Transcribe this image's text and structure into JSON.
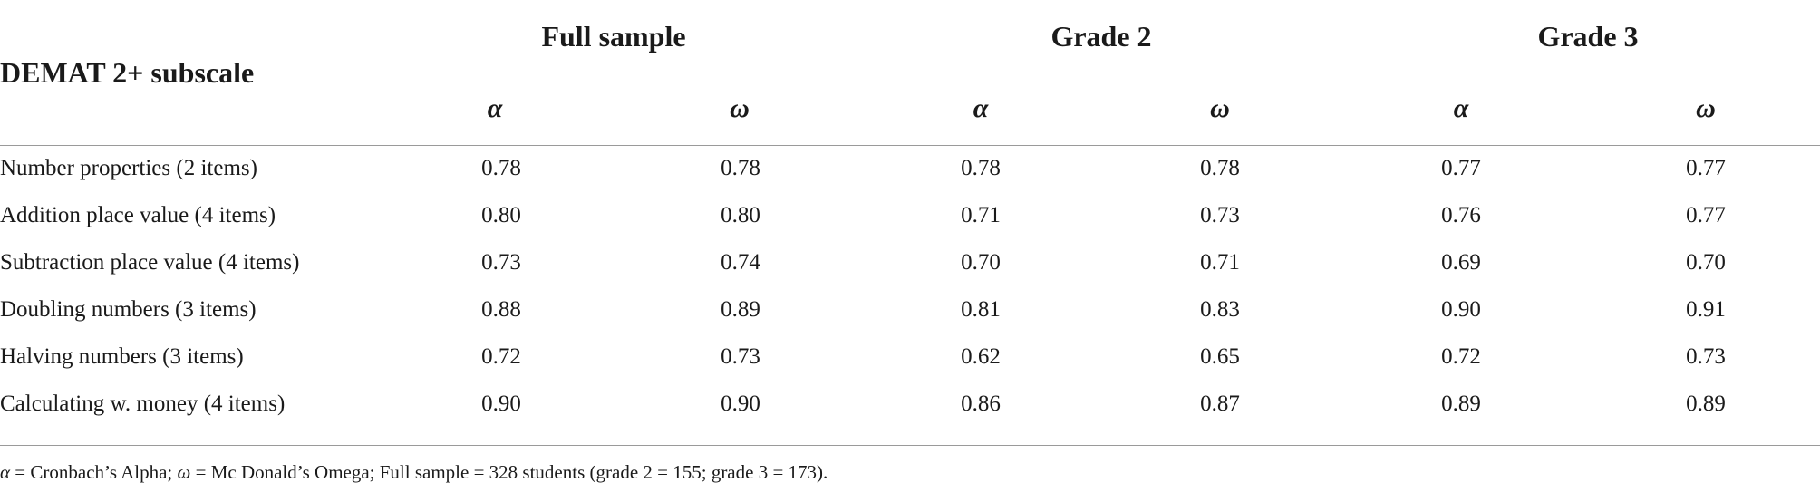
{
  "table": {
    "subscale_header": "DEMAT 2+ subscale",
    "groups": [
      {
        "label": "Full sample",
        "stat1": "α",
        "stat2": "ω"
      },
      {
        "label": "Grade 2",
        "stat1": "α",
        "stat2": "ω"
      },
      {
        "label": "Grade 3",
        "stat1": "α",
        "stat2": "ω"
      }
    ],
    "rows": [
      {
        "label": "Number properties (2 items)",
        "values": [
          "0.78",
          "0.78",
          "0.78",
          "0.78",
          "0.77",
          "0.77"
        ]
      },
      {
        "label": "Addition place value (4 items)",
        "values": [
          "0.80",
          "0.80",
          "0.71",
          "0.73",
          "0.76",
          "0.77"
        ]
      },
      {
        "label": "Subtraction place value (4 items)",
        "values": [
          "0.73",
          "0.74",
          "0.70",
          "0.71",
          "0.69",
          "0.70"
        ]
      },
      {
        "label": "Doubling numbers (3 items)",
        "values": [
          "0.88",
          "0.89",
          "0.81",
          "0.83",
          "0.90",
          "0.91"
        ]
      },
      {
        "label": "Halving numbers (3 items)",
        "values": [
          "0.72",
          "0.73",
          "0.62",
          "0.65",
          "0.72",
          "0.73"
        ]
      },
      {
        "label": "Calculating w. money (4 items)",
        "values": [
          "0.90",
          "0.90",
          "0.86",
          "0.87",
          "0.89",
          "0.89"
        ]
      }
    ]
  },
  "footnote": {
    "alpha_symbol": "α",
    "alpha_text": " = Cronbach’s Alpha; ",
    "omega_symbol": "ω",
    "omega_text": " = Mc Donald’s Omega; Full sample = 328 students (grade 2 = 155; grade 3 = 173)."
  }
}
